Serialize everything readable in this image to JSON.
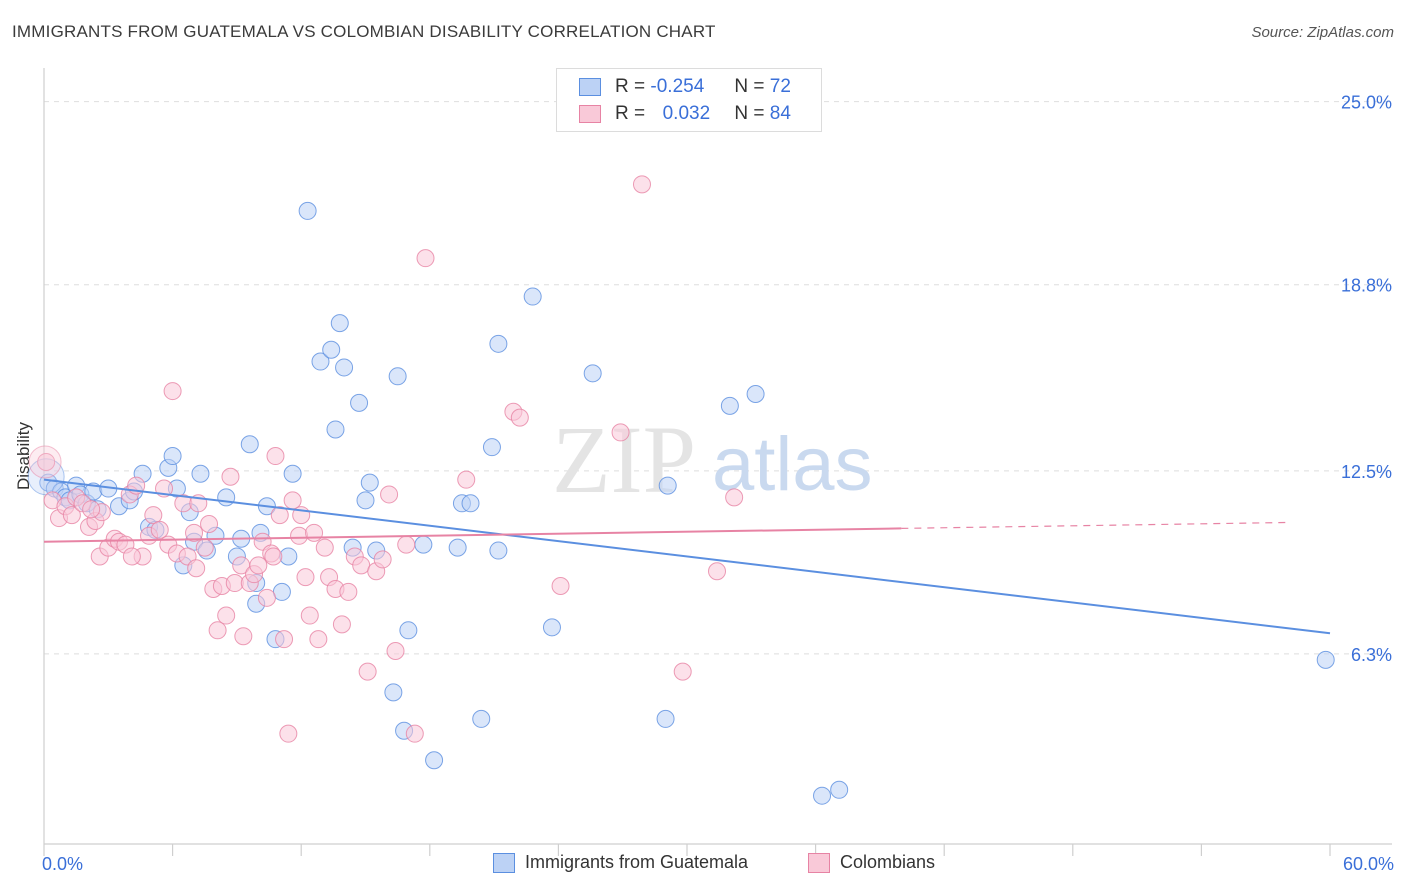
{
  "title": "IMMIGRANTS FROM GUATEMALA VS COLOMBIAN DISABILITY CORRELATION CHART",
  "source": "Source: ZipAtlas.com",
  "watermark": {
    "zip": "ZIP",
    "atlas": "atlas"
  },
  "legend": {
    "rows": [
      {
        "r_label": "R =",
        "r_value": "-0.254",
        "n_label": "N =",
        "n_value": "72",
        "color": "#5b8fe0",
        "fill": "#bcd2f5"
      },
      {
        "r_label": "R =",
        "r_value": "0.032",
        "n_label": "N =",
        "n_value": "84",
        "color": "#e783a4",
        "fill": "#f9c9d8"
      }
    ]
  },
  "chart_data": {
    "type": "scatter",
    "title": "IMMIGRANTS FROM GUATEMALA VS COLOMBIAN DISABILITY CORRELATION CHART",
    "xlabel": "",
    "ylabel": "Disability",
    "xlim": [
      0,
      60
    ],
    "ylim": [
      0,
      25.8
    ],
    "x_tick_labels": [
      "0.0%",
      "60.0%"
    ],
    "y_ticks": [
      6.3,
      12.5,
      18.8,
      25.0
    ],
    "y_tick_labels": [
      "6.3%",
      "12.5%",
      "18.8%",
      "25.0%"
    ],
    "grid": "horizontal dashed",
    "legend_position": "top-center",
    "series": [
      {
        "name": "Immigrants from Guatemala",
        "color": "#5b8fe0",
        "fill": "#bcd2f5",
        "trend": {
          "x": [
            0,
            60
          ],
          "y": [
            12.2,
            7.0
          ],
          "dashed_from": null
        },
        "points": [
          [
            0.2,
            12.1
          ],
          [
            0.5,
            11.9
          ],
          [
            0.8,
            11.8
          ],
          [
            1.0,
            11.6
          ],
          [
            1.2,
            11.5
          ],
          [
            1.5,
            12.0
          ],
          [
            1.7,
            11.7
          ],
          [
            2.0,
            11.4
          ],
          [
            2.3,
            11.8
          ],
          [
            2.5,
            11.2
          ],
          [
            3.0,
            11.9
          ],
          [
            3.5,
            11.3
          ],
          [
            4.0,
            11.5
          ],
          [
            4.2,
            11.8
          ],
          [
            4.6,
            12.4
          ],
          [
            4.9,
            10.6
          ],
          [
            5.2,
            10.5
          ],
          [
            5.8,
            12.6
          ],
          [
            6.0,
            13.0
          ],
          [
            6.2,
            11.9
          ],
          [
            6.5,
            9.3
          ],
          [
            6.8,
            11.1
          ],
          [
            7.0,
            10.1
          ],
          [
            7.3,
            12.4
          ],
          [
            7.6,
            9.8
          ],
          [
            8.0,
            10.3
          ],
          [
            8.5,
            11.6
          ],
          [
            9.0,
            9.6
          ],
          [
            9.2,
            10.2
          ],
          [
            9.6,
            13.4
          ],
          [
            9.9,
            8.7
          ],
          [
            10.1,
            10.4
          ],
          [
            10.4,
            11.3
          ],
          [
            10.8,
            6.8
          ],
          [
            11.1,
            8.4
          ],
          [
            11.4,
            9.6
          ],
          [
            11.6,
            12.4
          ],
          [
            12.3,
            21.3
          ],
          [
            12.9,
            16.2
          ],
          [
            13.4,
            16.6
          ],
          [
            13.6,
            13.9
          ],
          [
            13.8,
            17.5
          ],
          [
            14.0,
            16.0
          ],
          [
            14.4,
            9.9
          ],
          [
            14.7,
            14.8
          ],
          [
            15.0,
            11.5
          ],
          [
            15.2,
            12.1
          ],
          [
            15.5,
            9.8
          ],
          [
            16.3,
            5.0
          ],
          [
            16.5,
            15.7
          ],
          [
            16.8,
            3.7
          ],
          [
            17.0,
            7.1
          ],
          [
            17.7,
            10.0
          ],
          [
            18.2,
            2.7
          ],
          [
            19.3,
            9.9
          ],
          [
            19.5,
            11.4
          ],
          [
            19.9,
            11.4
          ],
          [
            20.4,
            4.1
          ],
          [
            20.9,
            13.3
          ],
          [
            21.2,
            9.8
          ],
          [
            21.2,
            16.8
          ],
          [
            22.8,
            18.4
          ],
          [
            23.7,
            7.2
          ],
          [
            25.6,
            15.8
          ],
          [
            29.1,
            12.0
          ],
          [
            29.0,
            4.1
          ],
          [
            32.0,
            14.7
          ],
          [
            33.2,
            15.1
          ],
          [
            36.3,
            1.5
          ],
          [
            37.1,
            1.7
          ],
          [
            59.8,
            6.1
          ],
          [
            9.9,
            8.0
          ]
        ],
        "sizes": [
          22
        ]
      },
      {
        "name": "Colombians",
        "color": "#e783a4",
        "fill": "#f9c9d8",
        "trend": {
          "x": [
            0,
            40,
            58
          ],
          "y": [
            10.1,
            10.55,
            10.75
          ],
          "dashed_from": 40
        },
        "points": [
          [
            0.1,
            12.8
          ],
          [
            0.4,
            11.5
          ],
          [
            0.7,
            10.9
          ],
          [
            1.0,
            11.3
          ],
          [
            1.3,
            11.0
          ],
          [
            1.5,
            11.6
          ],
          [
            1.8,
            11.4
          ],
          [
            2.1,
            10.6
          ],
          [
            2.4,
            10.8
          ],
          [
            2.7,
            11.1
          ],
          [
            2.6,
            9.6
          ],
          [
            3.0,
            9.9
          ],
          [
            3.3,
            10.2
          ],
          [
            3.5,
            10.1
          ],
          [
            3.8,
            10.0
          ],
          [
            4.0,
            11.7
          ],
          [
            4.3,
            12.0
          ],
          [
            4.6,
            9.6
          ],
          [
            4.9,
            10.3
          ],
          [
            5.1,
            11.0
          ],
          [
            5.4,
            10.5
          ],
          [
            5.8,
            10.0
          ],
          [
            6.0,
            15.2
          ],
          [
            6.2,
            9.7
          ],
          [
            6.5,
            11.4
          ],
          [
            6.7,
            9.6
          ],
          [
            7.0,
            10.4
          ],
          [
            7.2,
            11.4
          ],
          [
            7.5,
            9.9
          ],
          [
            7.7,
            10.7
          ],
          [
            7.9,
            8.5
          ],
          [
            8.1,
            7.1
          ],
          [
            8.3,
            8.6
          ],
          [
            8.5,
            7.6
          ],
          [
            8.7,
            12.3
          ],
          [
            8.9,
            8.7
          ],
          [
            9.2,
            9.3
          ],
          [
            9.3,
            6.9
          ],
          [
            9.6,
            8.7
          ],
          [
            9.8,
            9.0
          ],
          [
            10.0,
            9.3
          ],
          [
            10.2,
            10.1
          ],
          [
            10.4,
            8.2
          ],
          [
            10.6,
            9.7
          ],
          [
            10.8,
            13.0
          ],
          [
            11.0,
            11.0
          ],
          [
            11.2,
            6.8
          ],
          [
            11.4,
            3.6
          ],
          [
            11.6,
            11.5
          ],
          [
            11.9,
            10.3
          ],
          [
            12.2,
            8.9
          ],
          [
            12.4,
            7.6
          ],
          [
            12.6,
            10.4
          ],
          [
            12.8,
            6.8
          ],
          [
            13.1,
            9.9
          ],
          [
            13.3,
            8.9
          ],
          [
            13.6,
            8.5
          ],
          [
            13.9,
            7.3
          ],
          [
            14.2,
            8.4
          ],
          [
            14.5,
            9.6
          ],
          [
            14.8,
            9.3
          ],
          [
            15.1,
            5.7
          ],
          [
            15.5,
            9.1
          ],
          [
            15.8,
            9.5
          ],
          [
            16.1,
            11.7
          ],
          [
            16.4,
            6.4
          ],
          [
            16.9,
            10.0
          ],
          [
            17.3,
            3.6
          ],
          [
            17.8,
            19.7
          ],
          [
            19.7,
            12.2
          ],
          [
            21.9,
            14.5
          ],
          [
            22.2,
            14.3
          ],
          [
            24.1,
            8.6
          ],
          [
            26.9,
            13.8
          ],
          [
            27.9,
            22.2
          ],
          [
            29.8,
            5.7
          ],
          [
            31.4,
            9.1
          ],
          [
            32.2,
            11.6
          ],
          [
            4.1,
            9.6
          ],
          [
            2.2,
            11.2
          ],
          [
            5.6,
            11.9
          ],
          [
            7.1,
            9.2
          ],
          [
            10.7,
            9.6
          ],
          [
            12.0,
            11.0
          ]
        ],
        "sizes": [
          22
        ]
      }
    ]
  },
  "bottom_legend": [
    {
      "label": "Immigrants from Guatemala"
    },
    {
      "label": "Colombians"
    }
  ]
}
